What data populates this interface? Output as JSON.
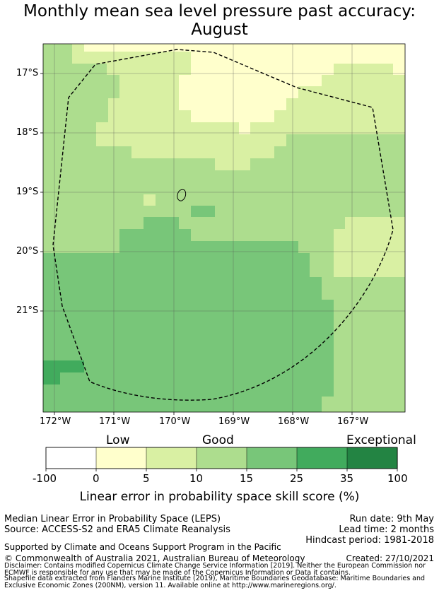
{
  "title": {
    "line1": "Monthly mean sea level pressure past accuracy:",
    "line2": "August"
  },
  "map": {
    "lat_labels": [
      "17°S",
      "18°S",
      "19°S",
      "20°S",
      "21°S"
    ],
    "lon_labels": [
      "172°W",
      "171°W",
      "170°W",
      "169°W",
      "168°W",
      "167°W"
    ]
  },
  "legend": {
    "category_labels": [
      "Low",
      "Good",
      "Exceptional"
    ],
    "ticks": [
      "-100",
      "0",
      "5",
      "10",
      "15",
      "25",
      "35",
      "100"
    ],
    "colors": [
      "#ffffff",
      "#ffffcc",
      "#d9f0a3",
      "#addd8e",
      "#78c679",
      "#41ab5d",
      "#238443"
    ],
    "axis_label": "Linear error in probability space skill score (%)"
  },
  "footer": {
    "method": "Median Linear Error in Probability Space (LEPS)",
    "source": "Source: ACCESS-S2 and ERA5 Climate Reanalysis",
    "run_date": "Run date: 9th May",
    "lead_time": "Lead time: 2 months",
    "hindcast": "Hindcast period: 1981-2018",
    "support": "Supported by Climate and Oceans Support Program in the Pacific",
    "copyright": "© Commonwealth of Australia 2021, Australian Bureau of Meteorology",
    "created": "Created: 27/10/2021",
    "disclaimer_1": "Disclaimer: Contains modified Copernicus Climate Change Service Information [2019]. Neither the European Commission nor",
    "disclaimer_2": "ECMWF is responsible for any use that may be made of the Copernicus Information or Data it contains.",
    "shapefile_1": "Shapefile data extracted from Flanders Marine Institute (2019), Maritime Boundaries Geodatabase: Maritime Boundaries and",
    "shapefile_2": "Exclusive Economic Zones (200NM), version 11. Available online at http://www.marineregions.org/."
  }
}
